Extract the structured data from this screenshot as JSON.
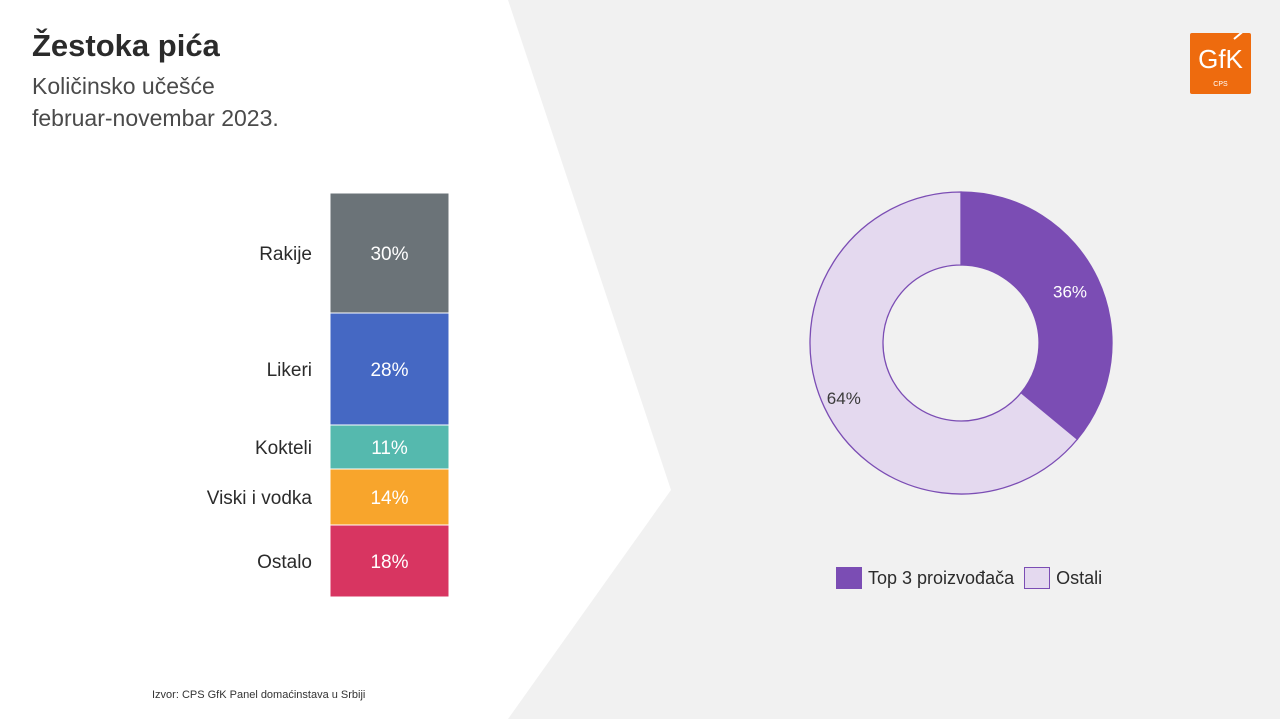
{
  "title": "Žestoka pića",
  "subtitle_lines": [
    "Količinsko učešće",
    "februar-novembar 2023."
  ],
  "source": "Izvor: CPS GfK Panel domaćinstava u Srbiji",
  "logo": {
    "text": "GfK",
    "sub": "CPS",
    "color": "#ee6b0e"
  },
  "colors": {
    "background_right": "#f1f1f1",
    "background_left": "#ffffff"
  },
  "chart_data": [
    {
      "type": "bar",
      "subtype": "100% stacked",
      "categories": [
        "Rakije",
        "Likeri",
        "Kokteli",
        "Viski i vodka",
        "Ostalo"
      ],
      "values": [
        30,
        28,
        11,
        14,
        18
      ],
      "labels": [
        "30%",
        "28%",
        "11%",
        "14%",
        "18%"
      ],
      "colors": [
        "#6b7378",
        "#4568c3",
        "#55b9ae",
        "#f8a52c",
        "#d83561"
      ]
    },
    {
      "type": "pie",
      "subtype": "donut",
      "categories": [
        "Top 3 proizvođača",
        "Ostali"
      ],
      "values": [
        36,
        64
      ],
      "labels": [
        "36%",
        "64%"
      ],
      "colors": [
        "#7b4db4",
        "#e4d9ef"
      ],
      "stroke": "#7b4db4",
      "legend": "bottom"
    }
  ]
}
